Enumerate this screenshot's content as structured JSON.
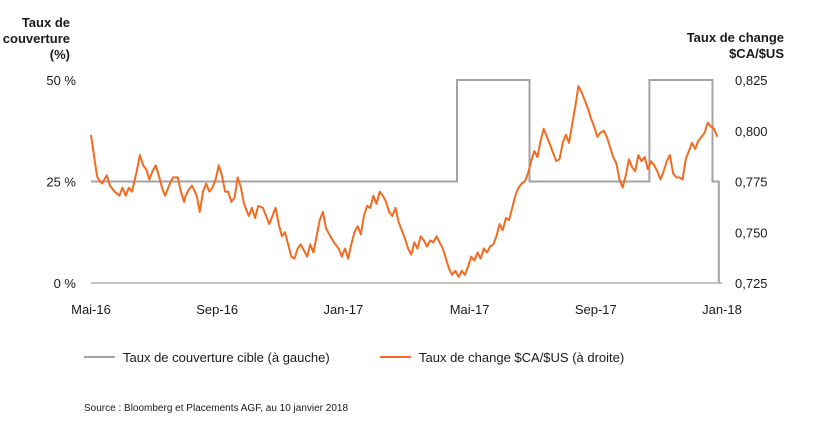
{
  "chart_data": {
    "type": "line",
    "source": "Source : Bloomberg et Placements AGF, au 10 janvier 2018",
    "left_axis": {
      "title_lines": [
        "Taux de",
        "couverture",
        "(%)"
      ],
      "ticks": [
        "50 %",
        "25 %",
        "0 %"
      ],
      "range": [
        0,
        50
      ]
    },
    "right_axis": {
      "title_lines": [
        "Taux de change",
        "$CA/$US"
      ],
      "ticks": [
        "0,825",
        "0,800",
        "0,775",
        "0,750",
        "0,725"
      ],
      "range": [
        0.725,
        0.825
      ]
    },
    "x_ticks": [
      "Mai-16",
      "Sep-16",
      "Jan-17",
      "Mai-17",
      "Sep-17",
      "Jan-18"
    ],
    "x_range_months": [
      0,
      20
    ],
    "colors": {
      "hedge": "#a3a3a3",
      "fx": "#f26b21",
      "axis": "#888888"
    },
    "legend": [
      {
        "label": "Taux de couverture cible (à gauche)",
        "series": "hedge"
      },
      {
        "label": "Taux de change $CA/$US (à droite)",
        "series": "fx"
      }
    ],
    "series": [
      {
        "key": "hedge",
        "name": "Taux de couverture cible (à gauche)",
        "axis": "left",
        "points": [
          [
            0,
            25
          ],
          [
            11.6,
            25
          ],
          [
            11.6,
            50
          ],
          [
            13.9,
            50
          ],
          [
            13.9,
            25
          ],
          [
            17.7,
            25
          ],
          [
            17.7,
            50
          ],
          [
            19.7,
            50
          ],
          [
            19.7,
            25
          ],
          [
            19.9,
            25
          ],
          [
            19.9,
            0
          ]
        ]
      },
      {
        "key": "fx",
        "name": "Taux de change $CA/$US (à droite)",
        "axis": "right",
        "points": [
          [
            0.0,
            0.798
          ],
          [
            0.1,
            0.787
          ],
          [
            0.2,
            0.777
          ],
          [
            0.35,
            0.774
          ],
          [
            0.5,
            0.778
          ],
          [
            0.6,
            0.773
          ],
          [
            0.75,
            0.77
          ],
          [
            0.9,
            0.768
          ],
          [
            1.0,
            0.772
          ],
          [
            1.1,
            0.768
          ],
          [
            1.2,
            0.772
          ],
          [
            1.3,
            0.77
          ],
          [
            1.45,
            0.78
          ],
          [
            1.55,
            0.788
          ],
          [
            1.65,
            0.783
          ],
          [
            1.75,
            0.781
          ],
          [
            1.85,
            0.776
          ],
          [
            1.95,
            0.78
          ],
          [
            2.05,
            0.783
          ],
          [
            2.15,
            0.778
          ],
          [
            2.25,
            0.772
          ],
          [
            2.35,
            0.768
          ],
          [
            2.5,
            0.774
          ],
          [
            2.6,
            0.777
          ],
          [
            2.75,
            0.777
          ],
          [
            2.85,
            0.77
          ],
          [
            2.95,
            0.765
          ],
          [
            3.0,
            0.768
          ],
          [
            3.1,
            0.771
          ],
          [
            3.2,
            0.773
          ],
          [
            3.35,
            0.768
          ],
          [
            3.45,
            0.76
          ],
          [
            3.55,
            0.77
          ],
          [
            3.65,
            0.774
          ],
          [
            3.75,
            0.77
          ],
          [
            3.85,
            0.772
          ],
          [
            3.95,
            0.776
          ],
          [
            4.05,
            0.783
          ],
          [
            4.15,
            0.778
          ],
          [
            4.25,
            0.77
          ],
          [
            4.35,
            0.77
          ],
          [
            4.45,
            0.765
          ],
          [
            4.55,
            0.767
          ],
          [
            4.65,
            0.777
          ],
          [
            4.75,
            0.772
          ],
          [
            4.85,
            0.764
          ],
          [
            5.0,
            0.758
          ],
          [
            5.1,
            0.762
          ],
          [
            5.2,
            0.757
          ],
          [
            5.3,
            0.763
          ],
          [
            5.45,
            0.762
          ],
          [
            5.55,
            0.758
          ],
          [
            5.65,
            0.754
          ],
          [
            5.75,
            0.758
          ],
          [
            5.85,
            0.762
          ],
          [
            5.95,
            0.754
          ],
          [
            6.05,
            0.748
          ],
          [
            6.15,
            0.75
          ],
          [
            6.25,
            0.744
          ],
          [
            6.35,
            0.738
          ],
          [
            6.45,
            0.737
          ],
          [
            6.55,
            0.742
          ],
          [
            6.65,
            0.744
          ],
          [
            6.75,
            0.741
          ],
          [
            6.85,
            0.738
          ],
          [
            6.95,
            0.744
          ],
          [
            7.05,
            0.74
          ],
          [
            7.15,
            0.748
          ],
          [
            7.25,
            0.756
          ],
          [
            7.35,
            0.76
          ],
          [
            7.45,
            0.752
          ],
          [
            7.55,
            0.749
          ],
          [
            7.7,
            0.745
          ],
          [
            7.85,
            0.742
          ],
          [
            7.95,
            0.738
          ],
          [
            8.05,
            0.742
          ],
          [
            8.15,
            0.737
          ],
          [
            8.25,
            0.744
          ],
          [
            8.35,
            0.75
          ],
          [
            8.45,
            0.753
          ],
          [
            8.55,
            0.749
          ],
          [
            8.65,
            0.758
          ],
          [
            8.75,
            0.763
          ],
          [
            8.85,
            0.762
          ],
          [
            8.95,
            0.768
          ],
          [
            9.05,
            0.764
          ],
          [
            9.15,
            0.77
          ],
          [
            9.25,
            0.768
          ],
          [
            9.35,
            0.765
          ],
          [
            9.45,
            0.76
          ],
          [
            9.55,
            0.758
          ],
          [
            9.65,
            0.762
          ],
          [
            9.75,
            0.755
          ],
          [
            9.85,
            0.751
          ],
          [
            9.95,
            0.747
          ],
          [
            10.05,
            0.742
          ],
          [
            10.15,
            0.739
          ],
          [
            10.25,
            0.745
          ],
          [
            10.35,
            0.742
          ],
          [
            10.45,
            0.748
          ],
          [
            10.55,
            0.746
          ],
          [
            10.65,
            0.743
          ],
          [
            10.75,
            0.746
          ],
          [
            10.85,
            0.745
          ],
          [
            10.95,
            0.748
          ],
          [
            11.05,
            0.745
          ],
          [
            11.15,
            0.742
          ],
          [
            11.25,
            0.737
          ],
          [
            11.35,
            0.732
          ],
          [
            11.45,
            0.729
          ],
          [
            11.55,
            0.731
          ],
          [
            11.65,
            0.728
          ],
          [
            11.75,
            0.731
          ],
          [
            11.85,
            0.729
          ],
          [
            11.95,
            0.733
          ],
          [
            12.05,
            0.738
          ],
          [
            12.15,
            0.736
          ],
          [
            12.25,
            0.74
          ],
          [
            12.35,
            0.737
          ],
          [
            12.45,
            0.742
          ],
          [
            12.55,
            0.74
          ],
          [
            12.65,
            0.743
          ],
          [
            12.75,
            0.744
          ],
          [
            12.85,
            0.748
          ],
          [
            12.95,
            0.754
          ],
          [
            13.05,
            0.751
          ],
          [
            13.15,
            0.757
          ],
          [
            13.25,
            0.756
          ],
          [
            13.35,
            0.762
          ],
          [
            13.45,
            0.768
          ],
          [
            13.55,
            0.772
          ],
          [
            13.65,
            0.774
          ],
          [
            13.75,
            0.775
          ],
          [
            13.85,
            0.779
          ],
          [
            13.95,
            0.785
          ],
          [
            14.05,
            0.79
          ],
          [
            14.15,
            0.787
          ],
          [
            14.25,
            0.795
          ],
          [
            14.35,
            0.801
          ],
          [
            14.45,
            0.797
          ],
          [
            14.55,
            0.793
          ],
          [
            14.65,
            0.789
          ],
          [
            14.75,
            0.785
          ],
          [
            14.85,
            0.786
          ],
          [
            14.95,
            0.794
          ],
          [
            15.05,
            0.798
          ],
          [
            15.15,
            0.794
          ],
          [
            15.25,
            0.803
          ],
          [
            15.35,
            0.812
          ],
          [
            15.45,
            0.822
          ],
          [
            15.55,
            0.819
          ],
          [
            15.65,
            0.815
          ],
          [
            15.75,
            0.811
          ],
          [
            15.85,
            0.806
          ],
          [
            15.95,
            0.802
          ],
          [
            16.05,
            0.797
          ],
          [
            16.15,
            0.799
          ],
          [
            16.25,
            0.8
          ],
          [
            16.35,
            0.797
          ],
          [
            16.45,
            0.792
          ],
          [
            16.55,
            0.787
          ],
          [
            16.65,
            0.784
          ],
          [
            16.75,
            0.776
          ],
          [
            16.85,
            0.772
          ],
          [
            16.95,
            0.778
          ],
          [
            17.05,
            0.786
          ],
          [
            17.15,
            0.782
          ],
          [
            17.25,
            0.78
          ],
          [
            17.35,
            0.788
          ],
          [
            17.45,
            0.785
          ],
          [
            17.55,
            0.787
          ],
          [
            17.65,
            0.781
          ],
          [
            17.75,
            0.785
          ],
          [
            17.85,
            0.783
          ],
          [
            17.95,
            0.78
          ],
          [
            18.05,
            0.776
          ],
          [
            18.15,
            0.78
          ],
          [
            18.25,
            0.785
          ],
          [
            18.35,
            0.788
          ],
          [
            18.45,
            0.779
          ],
          [
            18.55,
            0.777
          ],
          [
            18.65,
            0.777
          ],
          [
            18.75,
            0.776
          ],
          [
            18.85,
            0.786
          ],
          [
            18.95,
            0.79
          ],
          [
            19.05,
            0.794
          ],
          [
            19.15,
            0.791
          ],
          [
            19.25,
            0.795
          ],
          [
            19.35,
            0.797
          ],
          [
            19.45,
            0.799
          ],
          [
            19.55,
            0.804
          ],
          [
            19.65,
            0.802
          ],
          [
            19.75,
            0.801
          ],
          [
            19.85,
            0.797
          ]
        ]
      }
    ]
  }
}
